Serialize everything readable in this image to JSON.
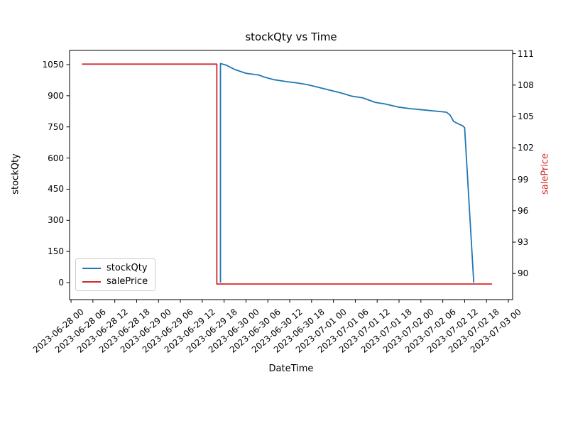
{
  "figure": {
    "title": "stockQty vs Time",
    "xlabel": "DateTime",
    "ylabel_left": "stockQty",
    "ylabel_right": "salePrice"
  },
  "legend": {
    "position": "lower-left",
    "items": [
      {
        "label": "stockQty",
        "color": "#1f77b4"
      },
      {
        "label": "salePrice",
        "color": "#d62728"
      }
    ]
  },
  "chart_data": {
    "type": "line",
    "title": "stockQty vs Time",
    "xlabel": "DateTime",
    "grid": false,
    "x_axis": {
      "lim": [
        "2023-06-27 23:36",
        "2023-07-03 01:10"
      ],
      "tick_interval_hours": 6,
      "tick_labels": [
        "2023-06-28 00",
        "2023-06-28 06",
        "2023-06-28 12",
        "2023-06-28 18",
        "2023-06-29 00",
        "2023-06-29 06",
        "2023-06-29 12",
        "2023-06-29 18",
        "2023-06-30 00",
        "2023-06-30 06",
        "2023-06-30 12",
        "2023-06-30 18",
        "2023-07-01 00",
        "2023-07-01 06",
        "2023-07-01 12",
        "2023-07-01 18",
        "2023-07-02 00",
        "2023-07-02 06",
        "2023-07-02 12",
        "2023-07-02 18",
        "2023-07-03 00"
      ]
    },
    "y_axis_left": {
      "label": "stockQty",
      "ticks": [
        0,
        150,
        300,
        450,
        600,
        750,
        900,
        1050
      ],
      "lim": [
        -82,
        1118.4
      ],
      "color": "#000000"
    },
    "y_axis_right": {
      "label": "salePrice",
      "ticks": [
        90,
        93,
        96,
        99,
        102,
        105,
        108,
        111
      ],
      "lim": [
        87.51,
        111.31
      ],
      "color": "#d62728"
    },
    "series": [
      {
        "name": "stockQty",
        "axis": "left",
        "color": "#1f77b4",
        "points": [
          [
            "2023-06-29 17:00",
            0
          ],
          [
            "2023-06-29 17:00",
            1055
          ],
          [
            "2023-06-29 18:30",
            1048
          ],
          [
            "2023-06-29 21:00",
            1026
          ],
          [
            "2023-06-30 00:00",
            1008
          ],
          [
            "2023-06-30 03:30",
            1000
          ],
          [
            "2023-06-30 05:00",
            990
          ],
          [
            "2023-06-30 07:30",
            978
          ],
          [
            "2023-06-30 11:30",
            967
          ],
          [
            "2023-06-30 14:00",
            962
          ],
          [
            "2023-06-30 17:00",
            953
          ],
          [
            "2023-06-30 20:00",
            940
          ],
          [
            "2023-06-30 23:00",
            927
          ],
          [
            "2023-07-01 02:00",
            914
          ],
          [
            "2023-07-01 05:00",
            898
          ],
          [
            "2023-07-01 08:00",
            890
          ],
          [
            "2023-07-01 11:30",
            868
          ],
          [
            "2023-07-01 14:00",
            861
          ],
          [
            "2023-07-01 18:00",
            845
          ],
          [
            "2023-07-01 21:00",
            838
          ],
          [
            "2023-07-02 00:00",
            833
          ],
          [
            "2023-07-02 04:00",
            826
          ],
          [
            "2023-07-02 07:00",
            821
          ],
          [
            "2023-07-02 08:00",
            807
          ],
          [
            "2023-07-02 09:00",
            776
          ],
          [
            "2023-07-02 10:30",
            763
          ],
          [
            "2023-07-02 11:30",
            755
          ],
          [
            "2023-07-02 12:00",
            746
          ],
          [
            "2023-07-02 14:30",
            0
          ]
        ]
      },
      {
        "name": "salePrice",
        "axis": "right",
        "color": "#d62728",
        "points": [
          [
            "2023-06-28 03:00",
            110
          ],
          [
            "2023-06-29 16:00",
            110
          ],
          [
            "2023-06-29 16:00",
            89
          ],
          [
            "2023-07-02 19:30",
            89
          ]
        ]
      }
    ]
  }
}
